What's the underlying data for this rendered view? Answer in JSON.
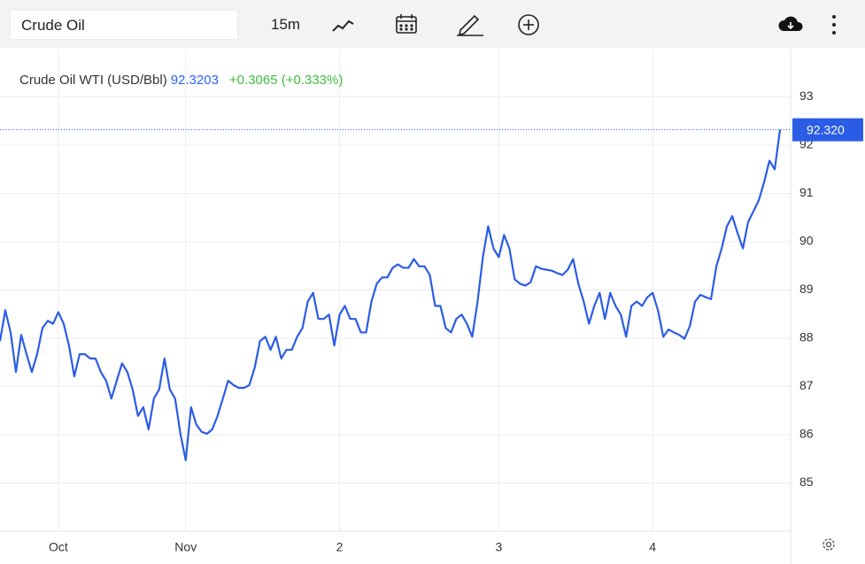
{
  "toolbar": {
    "symbol": "Crude Oil",
    "interval": "15m"
  },
  "chart_data": {
    "type": "line",
    "title": "Crude Oil WTI (USD/Bbl)",
    "legend_value": "92.3203",
    "legend_change": "+0.3065 (+0.333%)",
    "last_price_label": "92.320",
    "color": "#2b5ce6",
    "grid": true,
    "xlim": [
      0,
      149
    ],
    "xticks": [
      {
        "value": 11,
        "label": "Oct"
      },
      {
        "value": 35,
        "label": "Nov"
      },
      {
        "value": 64,
        "label": "2"
      },
      {
        "value": 94,
        "label": "3"
      },
      {
        "value": 123,
        "label": "4"
      }
    ],
    "ylim": [
      84,
      94
    ],
    "yticks": [
      85,
      86,
      87,
      88,
      89,
      90,
      91,
      92,
      93
    ],
    "values": [
      87.94,
      88.58,
      88.12,
      87.3,
      88.07,
      87.67,
      87.3,
      87.67,
      88.21,
      88.36,
      88.3,
      88.54,
      88.3,
      87.85,
      87.21,
      87.67,
      87.67,
      87.58,
      87.58,
      87.3,
      87.12,
      86.75,
      87.12,
      87.48,
      87.3,
      86.94,
      86.39,
      86.57,
      86.11,
      86.75,
      86.94,
      87.58,
      86.94,
      86.75,
      86.02,
      85.47,
      86.57,
      86.21,
      86.06,
      86.02,
      86.11,
      86.39,
      86.75,
      87.12,
      87.03,
      86.97,
      86.97,
      87.03,
      87.39,
      87.94,
      88.03,
      87.76,
      88.03,
      87.58,
      87.76,
      87.76,
      88.03,
      88.21,
      88.76,
      88.94,
      88.4,
      88.4,
      88.49,
      87.85,
      88.49,
      88.67,
      88.4,
      88.4,
      88.12,
      88.12,
      88.76,
      89.13,
      89.26,
      89.26,
      89.46,
      89.53,
      89.46,
      89.46,
      89.64,
      89.49,
      89.49,
      89.31,
      88.67,
      88.67,
      88.21,
      88.12,
      88.4,
      88.49,
      88.3,
      88.03,
      88.76,
      89.68,
      90.32,
      89.86,
      89.68,
      90.14,
      89.86,
      89.22,
      89.13,
      89.09,
      89.16,
      89.49,
      89.44,
      89.42,
      89.4,
      89.35,
      89.31,
      89.42,
      89.64,
      89.13,
      88.76,
      88.3,
      88.67,
      88.94,
      88.4,
      88.94,
      88.67,
      88.49,
      88.03,
      88.67,
      88.76,
      88.67,
      88.85,
      88.94,
      88.58,
      88.03,
      88.18,
      88.12,
      88.07,
      87.99,
      88.25,
      88.76,
      88.9,
      88.85,
      88.81,
      89.49,
      89.86,
      90.32,
      90.53,
      90.18,
      89.86,
      90.41,
      90.63,
      90.86,
      91.23,
      91.68,
      91.5,
      92.32
    ]
  }
}
